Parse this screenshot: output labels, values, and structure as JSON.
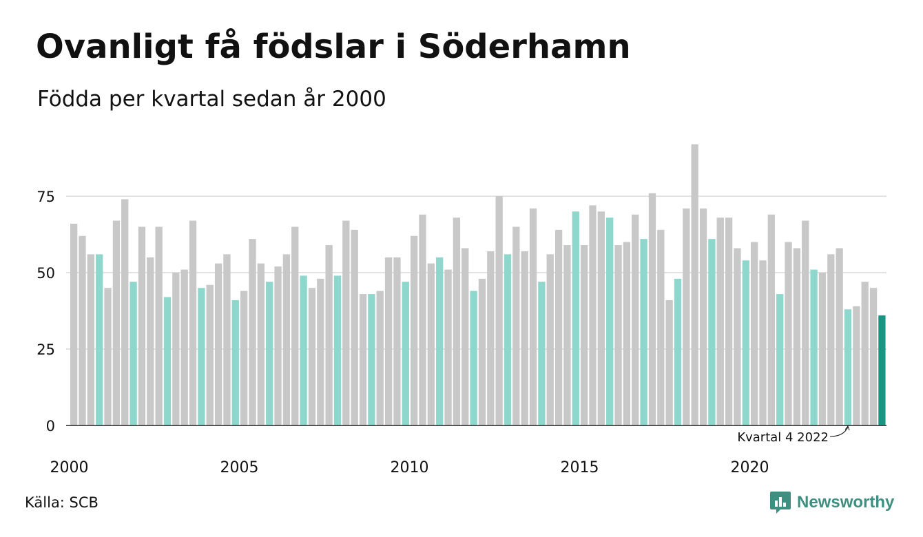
{
  "title": "Ovanligt få födslar i Söderhamn",
  "subtitle": "Födda per kvartal sedan år 2000",
  "source": "Källa: SCB",
  "brand": "Newsworthy",
  "colors": {
    "bar_default": "#c8c8c8",
    "bar_q4": "#8dd7cc",
    "bar_highlight": "#1c9484",
    "brand": "#3d8f80",
    "grid": "#e2e2e2",
    "axis": "#222222"
  },
  "chart_data": {
    "type": "bar",
    "x_start": "2000 Q1",
    "ylim": [
      0,
      92
    ],
    "yticks": [
      0,
      25,
      50,
      75
    ],
    "xtick_labels": [
      "2000",
      "2005",
      "2010",
      "2015",
      "2020"
    ],
    "annotation": "Kvartal 4 2022",
    "values": [
      66,
      62,
      56,
      56,
      45,
      67,
      74,
      47,
      65,
      55,
      65,
      42,
      50,
      51,
      67,
      45,
      46,
      53,
      56,
      41,
      44,
      61,
      53,
      47,
      52,
      56,
      65,
      49,
      45,
      48,
      59,
      49,
      67,
      64,
      43,
      43,
      44,
      55,
      55,
      47,
      62,
      69,
      53,
      55,
      51,
      68,
      58,
      44,
      48,
      57,
      75,
      56,
      65,
      57,
      71,
      47,
      56,
      64,
      59,
      70,
      59,
      72,
      70,
      68,
      59,
      60,
      69,
      61,
      76,
      64,
      41,
      48,
      71,
      92,
      71,
      61,
      68,
      68,
      58,
      54,
      60,
      54,
      69,
      43,
      60,
      58,
      67,
      51,
      50,
      56,
      58,
      38,
      39,
      47,
      45,
      36
    ]
  }
}
